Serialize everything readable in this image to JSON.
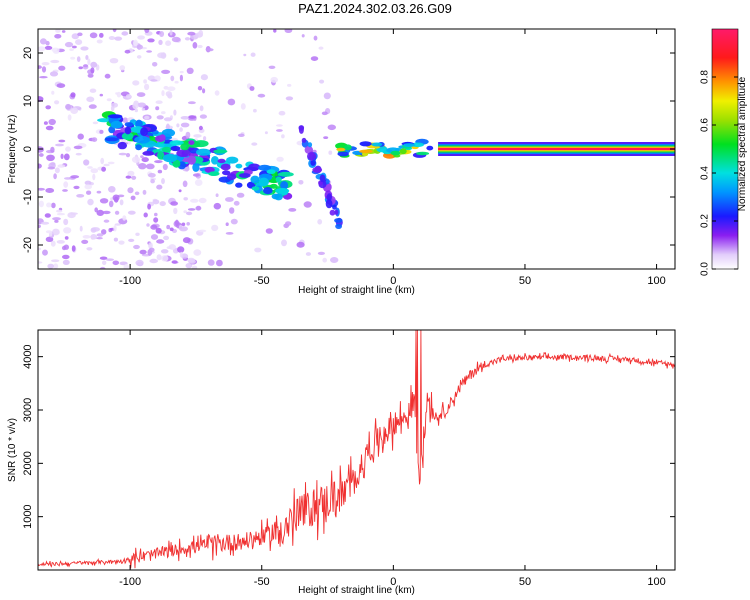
{
  "title": "PAZ1.2024.302.03.26.G09",
  "colors": {
    "snr_line": "#f03030",
    "ridge_core": "#ff1010",
    "background": "#ffffff"
  },
  "chart_data": [
    {
      "type": "heatmap",
      "title": "PAZ1.2024.302.03.26.G09",
      "xlabel": "Height of straight line (km)",
      "ylabel": "Frequency (Hz)",
      "xlim": [
        -135,
        107
      ],
      "ylim": [
        -25,
        25
      ],
      "x_ticks": [
        -100,
        -50,
        0,
        50,
        100
      ],
      "y_ticks": [
        -20,
        -10,
        0,
        10,
        20
      ],
      "grid": false,
      "colorbar": {
        "label": "Normalized spectral amplitude",
        "range": [
          0,
          1
        ],
        "ticks": [
          0.0,
          0.2,
          0.4,
          0.6,
          0.8
        ],
        "colormap": "rainbow (white-violet-blue-cyan-green-yellow-orange-red-magenta)"
      },
      "features": [
        {
          "name": "noise_region",
          "x_range": [
            -135,
            -20
          ],
          "amplitude": 0.1
        },
        {
          "name": "diagonal_ridge",
          "x_range": [
            -110,
            -40
          ],
          "freq_start": 5,
          "freq_end": -8,
          "amplitude": 0.4
        },
        {
          "name": "transition_blobs",
          "x_range": [
            -20,
            15
          ],
          "freq": 0,
          "amplitude": 0.6
        },
        {
          "name": "steady_line",
          "x_range": [
            17,
            107
          ],
          "freq": 0,
          "amplitude": 0.95
        }
      ]
    },
    {
      "type": "line",
      "xlabel": "Height of straight line (km)",
      "ylabel": "SNR (10 * v/v)",
      "xlim": [
        -135,
        107
      ],
      "ylim": [
        0,
        4500
      ],
      "x_ticks": [
        -100,
        -50,
        0,
        50,
        100
      ],
      "y_ticks": [
        1000,
        2000,
        3000,
        4000
      ],
      "grid": false,
      "series": [
        {
          "x": [
            -135,
            -120,
            -105,
            -95,
            -85,
            -75,
            -65,
            -55,
            -45,
            -38,
            -30,
            -25,
            -20,
            -15,
            -10,
            -5,
            0,
            5,
            8,
            10,
            13,
            16,
            20,
            25,
            30,
            35,
            40,
            50,
            60,
            70,
            80,
            90,
            100,
            107
          ],
          "values": [
            100,
            130,
            160,
            250,
            350,
            450,
            500,
            550,
            700,
            950,
            1200,
            1300,
            1400,
            1600,
            2200,
            2500,
            2700,
            2900,
            3200,
            1600,
            3300,
            2850,
            3000,
            3400,
            3700,
            3850,
            3950,
            3980,
            3990,
            3990,
            3970,
            3950,
            3880,
            3850
          ]
        }
      ]
    }
  ]
}
